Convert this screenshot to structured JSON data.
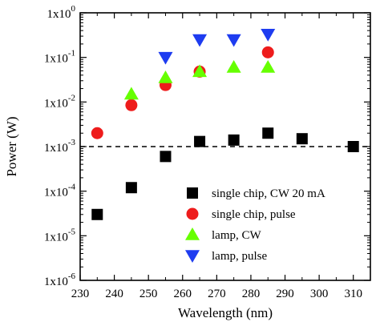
{
  "chart_data": {
    "type": "scatter",
    "xlabel": "Wavelength (nm)",
    "ylabel": "Power (W)",
    "xlim": [
      230,
      315
    ],
    "ylim_exp": [
      -6,
      0
    ],
    "y_scale": "log",
    "x_ticks": [
      {
        "value": 230,
        "label": "230"
      },
      {
        "value": 240,
        "label": "240"
      },
      {
        "value": 250,
        "label": "250"
      },
      {
        "value": 260,
        "label": "260"
      },
      {
        "value": 270,
        "label": "270"
      },
      {
        "value": 280,
        "label": "280"
      },
      {
        "value": 290,
        "label": "290"
      },
      {
        "value": 300,
        "label": "300"
      },
      {
        "value": 310,
        "label": "310"
      }
    ],
    "y_ticks": [
      {
        "exp": 0,
        "mantissa": "1x10",
        "power": "0"
      },
      {
        "exp": -1,
        "mantissa": "1x10",
        "power": "-1"
      },
      {
        "exp": -2,
        "mantissa": "1x10",
        "power": "-2"
      },
      {
        "exp": -3,
        "mantissa": "1x10",
        "power": "-3"
      },
      {
        "exp": -4,
        "mantissa": "1x10",
        "power": "-4"
      },
      {
        "exp": -5,
        "mantissa": "1x10",
        "power": "-5"
      },
      {
        "exp": -6,
        "mantissa": "1x10",
        "power": "-6"
      }
    ],
    "reference_line": {
      "y": 0.001,
      "style": "dashed"
    },
    "grid": false,
    "legend_position": "lower-right",
    "series": [
      {
        "name": "single chip, CW 20 mA",
        "marker": "square",
        "color": "#000000",
        "points": [
          {
            "x": 235,
            "y": 3e-05
          },
          {
            "x": 245,
            "y": 0.00012
          },
          {
            "x": 255,
            "y": 0.0006
          },
          {
            "x": 265,
            "y": 0.0013
          },
          {
            "x": 275,
            "y": 0.0014
          },
          {
            "x": 285,
            "y": 0.002
          },
          {
            "x": 295,
            "y": 0.0015
          },
          {
            "x": 310,
            "y": 0.001
          }
        ]
      },
      {
        "name": "single chip, pulse",
        "marker": "circle",
        "color": "#ee1c1c",
        "points": [
          {
            "x": 235,
            "y": 0.002
          },
          {
            "x": 245,
            "y": 0.0085
          },
          {
            "x": 255,
            "y": 0.024
          },
          {
            "x": 265,
            "y": 0.048
          },
          {
            "x": 285,
            "y": 0.13
          }
        ]
      },
      {
        "name": "lamp, CW",
        "marker": "triangle-up",
        "color": "#66ff00",
        "points": [
          {
            "x": 245,
            "y": 0.015
          },
          {
            "x": 255,
            "y": 0.035
          },
          {
            "x": 265,
            "y": 0.048
          },
          {
            "x": 275,
            "y": 0.06
          },
          {
            "x": 285,
            "y": 0.06
          }
        ]
      },
      {
        "name": "lamp, pulse",
        "marker": "triangle-down",
        "color": "#1e3cf0",
        "points": [
          {
            "x": 255,
            "y": 0.1
          },
          {
            "x": 265,
            "y": 0.25
          },
          {
            "x": 275,
            "y": 0.25
          },
          {
            "x": 285,
            "y": 0.33
          }
        ]
      }
    ]
  }
}
